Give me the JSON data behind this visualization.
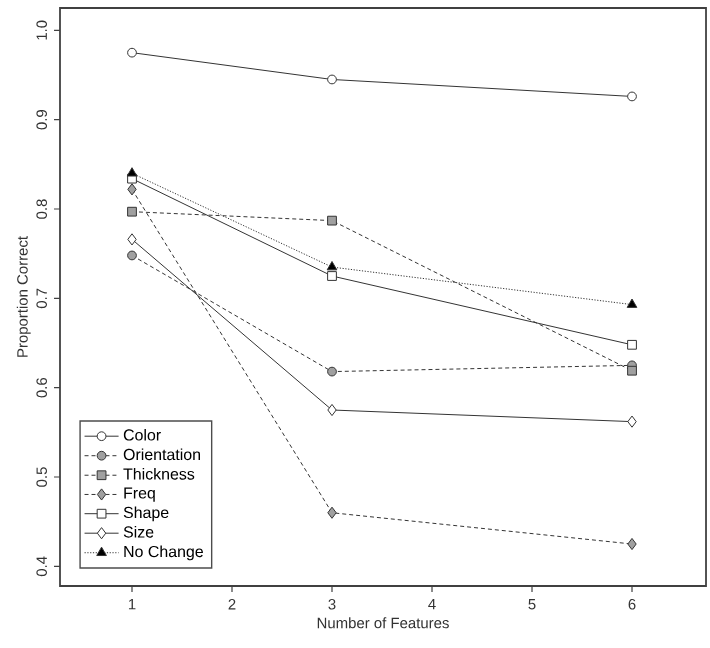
{
  "chart_data": {
    "type": "line",
    "xlabel": "Number of Features",
    "ylabel": "Proportion Correct",
    "x": [
      1,
      3,
      6
    ],
    "series": [
      {
        "name": "Color",
        "color": "#ffffff",
        "marker": "circle",
        "line_style": "solid",
        "values": [
          0.975,
          0.945,
          0.926
        ]
      },
      {
        "name": "Orientation",
        "color": "#a0a0a0",
        "marker": "circle",
        "line_style": "dashed",
        "values": [
          0.748,
          0.618,
          0.625
        ]
      },
      {
        "name": "Thickness",
        "color": "#a0a0a0",
        "marker": "square",
        "line_style": "dashed",
        "values": [
          0.797,
          0.787,
          0.619
        ]
      },
      {
        "name": "Freq",
        "color": "#a0a0a0",
        "marker": "diamond",
        "line_style": "dashed",
        "values": [
          0.822,
          0.46,
          0.425
        ]
      },
      {
        "name": "Shape",
        "color": "#ffffff",
        "marker": "square",
        "line_style": "solid",
        "values": [
          0.834,
          0.725,
          0.648
        ]
      },
      {
        "name": "Size",
        "color": "#ffffff",
        "marker": "diamond",
        "line_style": "solid",
        "values": [
          0.766,
          0.575,
          0.562
        ]
      },
      {
        "name": "No Change",
        "color": "#000000",
        "marker": "triangle",
        "line_style": "dotted",
        "values": [
          0.84,
          0.735,
          0.693
        ]
      }
    ],
    "xlim": [
      0.28,
      6.74
    ],
    "ylim": [
      0.378,
      1.025
    ],
    "xticks": [
      1,
      2,
      3,
      4,
      5,
      6
    ],
    "yticks": [
      {
        "value": 0.4,
        "label": "0.4"
      },
      {
        "value": 0.5,
        "label": "0.5"
      },
      {
        "value": 0.6,
        "label": "0.6"
      },
      {
        "value": 0.7,
        "label": "0.7"
      },
      {
        "value": 0.8,
        "label": "0.8"
      },
      {
        "value": 0.9,
        "label": "0.9"
      },
      {
        "value": 1.0,
        "label": "1.0"
      }
    ],
    "grid": false,
    "legend": "bottom left"
  }
}
